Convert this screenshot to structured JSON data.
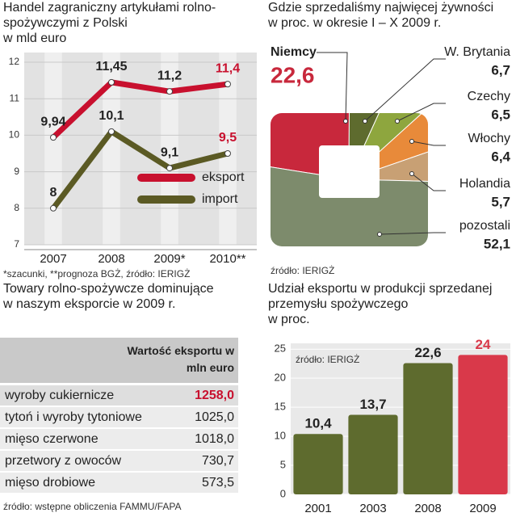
{
  "chart_data": [
    {
      "type": "line",
      "title": "Handel zagraniczny artykułami rolno-spożywczymi z Polski",
      "subtitle": "w mld euro",
      "categories": [
        "2007",
        "2008",
        "2009*",
        "2010**"
      ],
      "series": [
        {
          "name": "eksport",
          "color": "#c8102e",
          "values": [
            9.94,
            11.45,
            11.2,
            11.4
          ],
          "value_labels": [
            "9,94",
            "11,45",
            "11,2",
            "11,4"
          ]
        },
        {
          "name": "import",
          "color": "#5b5a24",
          "values": [
            8,
            10.1,
            9.1,
            9.5
          ],
          "value_labels": [
            "8",
            "10,1",
            "9,1",
            "9,5"
          ]
        }
      ],
      "ylim": [
        7,
        12
      ],
      "yticks": [
        7,
        8,
        9,
        10,
        11,
        12
      ],
      "grid": true,
      "note": "*szacunki, **prognoza BGŻ, źródło: IERIGŻ"
    },
    {
      "type": "pie",
      "title": "Gdzie sprzedaliśmy najwięcej żywności",
      "subtitle": "w proc. w okresie I – X 2009 r.",
      "categories": [
        "Niemcy",
        "W. Brytania",
        "Czechy",
        "Włochy",
        "Holandia",
        "pozostali"
      ],
      "values": [
        22.6,
        6.7,
        6.5,
        6.4,
        5.7,
        52.1
      ],
      "value_labels": [
        "22,6",
        "6,7",
        "6,5",
        "6,4",
        "5,7",
        "52,1"
      ],
      "colors": [
        "#c8283c",
        "#5e6b2e",
        "#8ea63e",
        "#e88a3a",
        "#c8a074",
        "#7d8b6c"
      ],
      "source": "źródło: IERIGŻ"
    },
    {
      "type": "bar",
      "title": "Udział eksportu w produkcji sprzedanej przemysłu spożywczego",
      "subtitle": "w proc.",
      "categories": [
        "2001",
        "2003",
        "2008",
        "2009"
      ],
      "values": [
        10.4,
        13.7,
        22.6,
        24
      ],
      "value_labels": [
        "10,4",
        "13,7",
        "22,6",
        "24"
      ],
      "colors": [
        "#5e6b2e",
        "#5e6b2e",
        "#5e6b2e",
        "#d9394a"
      ],
      "ylim": [
        0,
        26
      ],
      "yticks": [
        0,
        5,
        10,
        15,
        20,
        25
      ],
      "grid": true,
      "source": "źródło: IERIGŻ"
    }
  ],
  "table": {
    "title": "Towary rolno-spożywcze dominujące w naszym eksporcie w 2009 r.",
    "header": "Wartość eksportu w mln euro",
    "rows": [
      [
        "wyroby cukiernicze",
        "1258,0"
      ],
      [
        "tytoń i wyroby tytoniowe",
        "1025,0"
      ],
      [
        "mięso czerwone",
        "1018,0"
      ],
      [
        "przetwory z owoców",
        "730,7"
      ],
      [
        "mięso drobiowe",
        "573,5"
      ]
    ],
    "source": "źródło: wstępne obliczenia FAMMU/FAPA"
  }
}
